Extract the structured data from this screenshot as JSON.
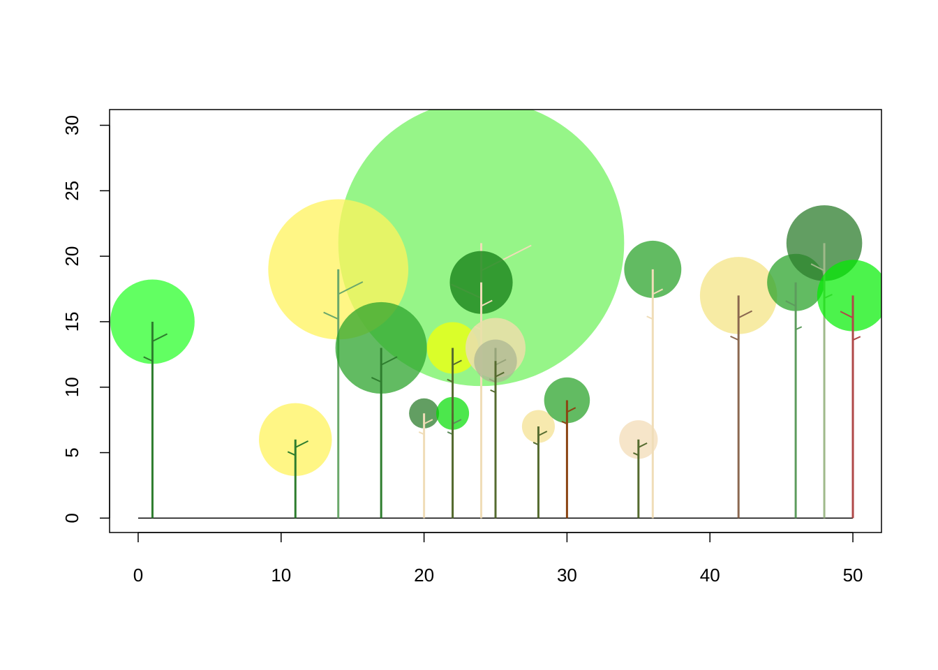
{
  "chart_data": {
    "type": "scatter",
    "title": "",
    "xlabel": "",
    "ylabel": "",
    "xlim": [
      -2,
      52
    ],
    "ylim": [
      -1.1,
      31.2
    ],
    "x_ticks": [
      "0",
      "10",
      "20",
      "30",
      "40",
      "50"
    ],
    "y_ticks": [
      "0",
      "5",
      "10",
      "15",
      "20",
      "25",
      "30"
    ],
    "grid": false,
    "legend": "none",
    "baseline": {
      "x_from": 0,
      "x_to": 50,
      "y": 0
    },
    "trees": [
      {
        "x": 24,
        "height": 21,
        "radius": 10,
        "crown_color": "#7CF26A",
        "crown_alpha": 0.8,
        "trunk_color": "#F0DDB8",
        "branch_lean": 1
      },
      {
        "x": 14,
        "height": 19,
        "radius": 4.9,
        "crown_color": "#FFF35C",
        "crown_alpha": 0.75,
        "trunk_color": "#6BA86B",
        "branch_lean": 1
      },
      {
        "x": 1,
        "height": 15,
        "radius": 2.95,
        "crown_color": "#2EFF2E",
        "crown_alpha": 0.75,
        "trunk_color": "#2E7D2E",
        "branch_lean": 1
      },
      {
        "x": 11,
        "height": 6,
        "radius": 2.55,
        "crown_color": "#FFF35C",
        "crown_alpha": 0.75,
        "trunk_color": "#2E7D2E",
        "branch_lean": 1
      },
      {
        "x": 17,
        "height": 13,
        "radius": 3.2,
        "crown_color": "#2EA42E",
        "crown_alpha": 0.75,
        "trunk_color": "#2E7D2E",
        "branch_lean": 1
      },
      {
        "x": 20,
        "height": 8,
        "radius": 1.05,
        "crown_color": "#2E7D2E",
        "crown_alpha": 0.75,
        "trunk_color": "#F0DDB8",
        "branch_lean": 1
      },
      {
        "x": 22,
        "height": 8,
        "radius": 1.15,
        "crown_color": "#00DD00",
        "crown_alpha": 0.7,
        "trunk_color": "#5D8C5D",
        "branch_lean": 1
      },
      {
        "x": 24,
        "height": 18,
        "radius": 2.2,
        "crown_color": "#228B22",
        "crown_alpha": 0.85,
        "trunk_color": "#F0DDB8",
        "branch_lean": 1
      },
      {
        "x": 22,
        "height": 13,
        "radius": 1.8,
        "crown_color": "#E6FF1A",
        "crown_alpha": 0.85,
        "trunk_color": "#556B2F",
        "branch_lean": 1
      },
      {
        "x": 25,
        "height": 13,
        "radius": 2.1,
        "crown_color": "#E8E0A8",
        "crown_alpha": 0.9,
        "trunk_color": "#556B2F",
        "branch_lean": 1
      },
      {
        "x": 25,
        "height": 12,
        "radius": 1.5,
        "crown_color": "#AEB794",
        "crown_alpha": 0.75,
        "trunk_color": "#556B2F",
        "branch_lean": 1
      },
      {
        "x": 28,
        "height": 7,
        "radius": 1.15,
        "crown_color": "#F6E7A5",
        "crown_alpha": 0.9,
        "trunk_color": "#556B2F",
        "branch_lean": 1
      },
      {
        "x": 30,
        "height": 9,
        "radius": 1.6,
        "crown_color": "#2EA42E",
        "crown_alpha": 0.75,
        "trunk_color": "#8B4513",
        "branch_lean": 1
      },
      {
        "x": 35,
        "height": 6,
        "radius": 1.35,
        "crown_color": "#F5E0C0",
        "crown_alpha": 0.85,
        "trunk_color": "#556B2F",
        "branch_lean": 1
      },
      {
        "x": 36,
        "height": 19,
        "radius": 2.0,
        "crown_color": "#2EA42E",
        "crown_alpha": 0.75,
        "trunk_color": "#F0DDB8",
        "branch_lean": 1
      },
      {
        "x": 42,
        "height": 17,
        "radius": 2.7,
        "crown_color": "#F6E99A",
        "crown_alpha": 0.9,
        "trunk_color": "#8B6850",
        "branch_lean": 1
      },
      {
        "x": 46,
        "height": 18,
        "radius": 2.0,
        "crown_color": "#2EA42E",
        "crown_alpha": 0.75,
        "trunk_color": "#5D9C5D",
        "branch_lean": -1
      },
      {
        "x": 48,
        "height": 21,
        "radius": 2.65,
        "crown_color": "#2E7D2E",
        "crown_alpha": 0.75,
        "trunk_color": "#9FB98A",
        "branch_lean": -1
      },
      {
        "x": 50,
        "height": 17,
        "radius": 2.5,
        "crown_color": "#00EE00",
        "crown_alpha": 0.7,
        "trunk_color": "#B04848",
        "branch_lean": -1
      }
    ]
  }
}
